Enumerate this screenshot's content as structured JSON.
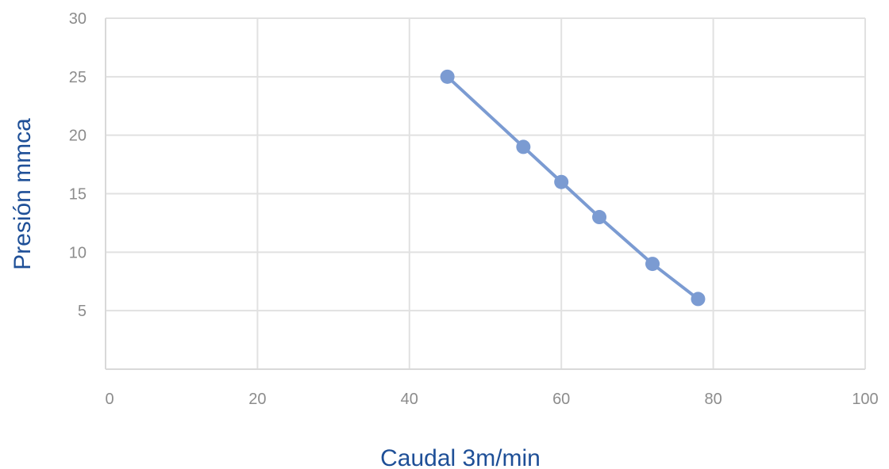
{
  "chart_data": {
    "type": "line",
    "title": "",
    "xlabel": "Caudal 3m/min",
    "ylabel": "Presión mmca",
    "xlim": [
      0,
      100
    ],
    "ylim": [
      0,
      30
    ],
    "x_ticks": [
      0,
      20,
      40,
      60,
      80,
      100
    ],
    "y_ticks": [
      5,
      10,
      15,
      20,
      25,
      30
    ],
    "grid": true,
    "legend": "none",
    "series": [
      {
        "x": [
          45,
          55,
          60,
          65,
          72,
          78
        ],
        "y": [
          25,
          19,
          16,
          13,
          9,
          6
        ]
      }
    ],
    "colors": {
      "series": "#7b9bd2",
      "grid": "#e1e1e1",
      "axis": "#d9d9d9",
      "tick_text": "#8c8c8c",
      "axis_title": "#1e4f97"
    }
  }
}
